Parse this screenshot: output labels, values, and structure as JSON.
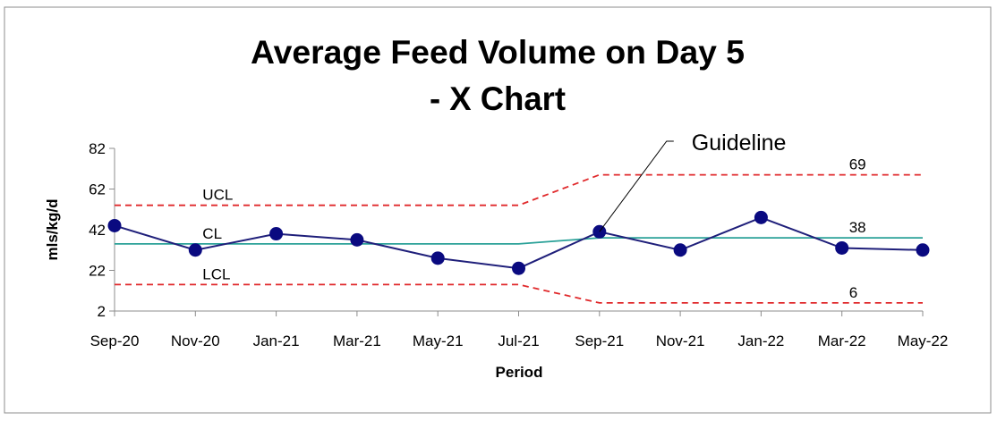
{
  "chart_data": {
    "type": "line",
    "title": [
      "Average Feed Volume on Day 5",
      "- X Chart"
    ],
    "xlabel": "Period",
    "ylabel": "mls/kg/d",
    "categories": [
      "Sep-20",
      "Nov-20",
      "Jan-21",
      "Mar-21",
      "May-21",
      "Jul-21",
      "Sep-21",
      "Nov-21",
      "Jan-22",
      "Mar-22",
      "May-22"
    ],
    "yticks": [
      2,
      22,
      42,
      62,
      82
    ],
    "ylim": [
      2,
      82
    ],
    "grid": false,
    "series": [
      {
        "name": "",
        "role": "data",
        "color": "#1f1f7a",
        "values": [
          44,
          32,
          40,
          37,
          28,
          23,
          41,
          32,
          48,
          33,
          32
        ]
      },
      {
        "name": "",
        "role": "cl",
        "color": "#2aa198",
        "values": [
          35,
          35,
          35,
          35,
          35,
          35,
          38,
          38,
          38,
          38,
          38
        ]
      },
      {
        "name": "",
        "role": "ucl",
        "color": "#e0292b",
        "values": [
          54,
          54,
          54,
          54,
          54,
          54,
          69,
          69,
          69,
          69,
          69
        ]
      },
      {
        "name": "",
        "role": "lcl",
        "color": "#e0292b",
        "values": [
          15,
          15,
          15,
          15,
          15,
          15,
          6,
          6,
          6,
          6,
          6
        ]
      }
    ],
    "annotations": [
      {
        "text": "UCL",
        "x": "Nov-20",
        "y": 54,
        "anchor": "above"
      },
      {
        "text": "CL",
        "x": "Nov-20",
        "y": 35,
        "anchor": "above"
      },
      {
        "text": "LCL",
        "x": "Nov-20",
        "y": 15,
        "anchor": "above"
      },
      {
        "text": "69",
        "x": "Mar-22",
        "y": 69,
        "anchor": "above"
      },
      {
        "text": "38",
        "x": "Mar-22",
        "y": 38,
        "anchor": "above"
      },
      {
        "text": "6",
        "x": "Mar-22",
        "y": 6,
        "anchor": "above"
      }
    ],
    "callout": {
      "text": "Guideline",
      "x": "Sep-21",
      "y": 41
    }
  }
}
